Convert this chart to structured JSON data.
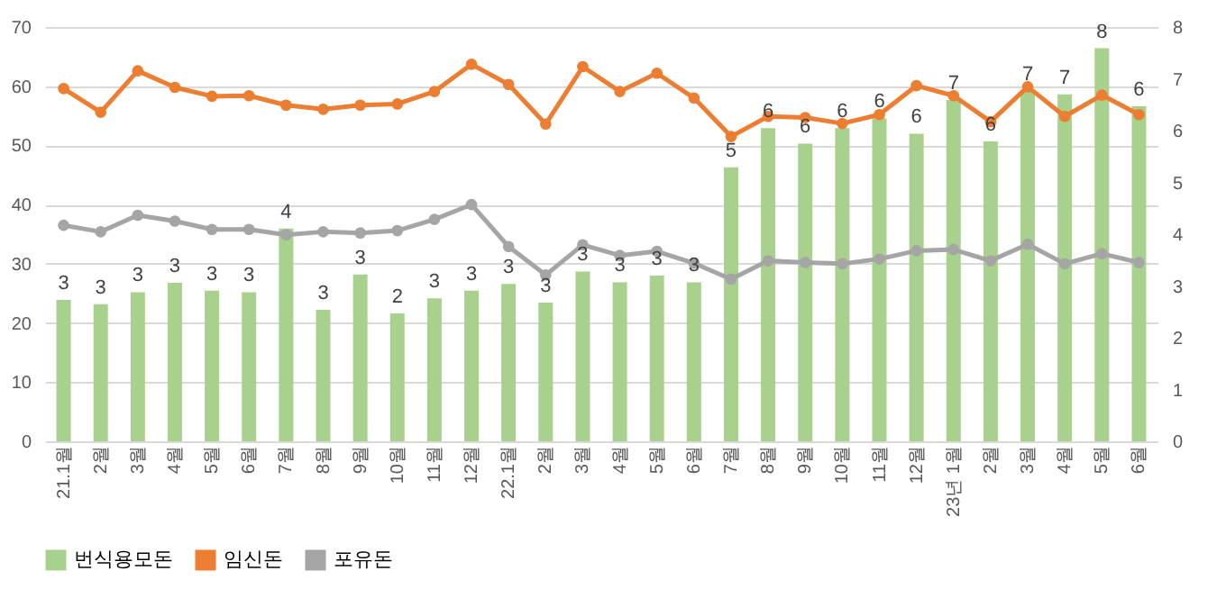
{
  "chart_data": {
    "type": "bar",
    "categories": [
      "21.1월",
      "2월",
      "3월",
      "4월",
      "5월",
      "6월",
      "7월",
      "8월",
      "9월",
      "10월",
      "11월",
      "12월",
      "22.1월",
      "2월",
      "3월",
      "4월",
      "5월",
      "6월",
      "7월",
      "8월",
      "9월",
      "10월",
      "11월",
      "12월",
      "23년 1월",
      "2월",
      "3월",
      "4월",
      "5월",
      "6월"
    ],
    "series": [
      {
        "name": "번식용모돈",
        "axis": "y2",
        "color": "#a9d18e",
        "values": [
          2.73,
          2.65,
          2.88,
          3.06,
          2.91,
          2.88,
          4.11,
          2.54,
          3.22,
          2.47,
          2.76,
          2.91,
          3.04,
          2.68,
          3.28,
          3.07,
          3.2,
          3.07,
          5.29,
          6.05,
          5.75,
          6.05,
          6.24,
          5.94,
          6.59,
          5.79,
          6.77,
          6.7,
          7.59,
          6.47
        ],
        "value_labels": [
          "3",
          "3",
          "3",
          "3",
          "3",
          "3",
          "4",
          "3",
          "3",
          "2",
          "3",
          "3",
          "3",
          "3",
          "3",
          "3",
          "3",
          "3",
          "5",
          "6",
          "6",
          "6",
          "6",
          "6",
          "7",
          "6",
          "7",
          "7",
          "8",
          "6"
        ]
      },
      {
        "name": "임신돈",
        "type": "line",
        "color": "#ed7d31",
        "values": [
          59.6,
          55.6,
          62.6,
          59.8,
          58.3,
          58.4,
          56.8,
          56.1,
          56.8,
          57.0,
          59.1,
          63.7,
          60.3,
          53.6,
          63.3,
          59.1,
          62.2,
          58.0,
          51.5,
          54.9,
          54.7,
          53.7,
          55.2,
          60.1,
          58.4,
          54.0,
          59.9,
          54.9,
          58.5,
          55.2
        ]
      },
      {
        "name": "포유돈",
        "type": "line",
        "color": "#a5a5a5",
        "values": [
          36.5,
          35.4,
          38.2,
          37.2,
          35.8,
          35.8,
          34.9,
          35.4,
          35.2,
          35.6,
          37.5,
          40.0,
          32.9,
          28.1,
          33.2,
          31.4,
          32.1,
          30.1,
          27.4,
          30.5,
          30.2,
          30.0,
          30.8,
          32.2,
          32.4,
          30.5,
          33.3,
          30.0,
          31.7,
          30.2
        ]
      }
    ],
    "ylim": [
      0,
      70
    ],
    "yticks": [
      0,
      10,
      20,
      30,
      40,
      50,
      60,
      70
    ],
    "y2lim": [
      0,
      8
    ],
    "y2ticks": [
      0,
      1,
      2,
      3,
      4,
      5,
      6,
      7,
      8
    ],
    "grid": "y",
    "legend": "bottom",
    "marker": "circle"
  }
}
